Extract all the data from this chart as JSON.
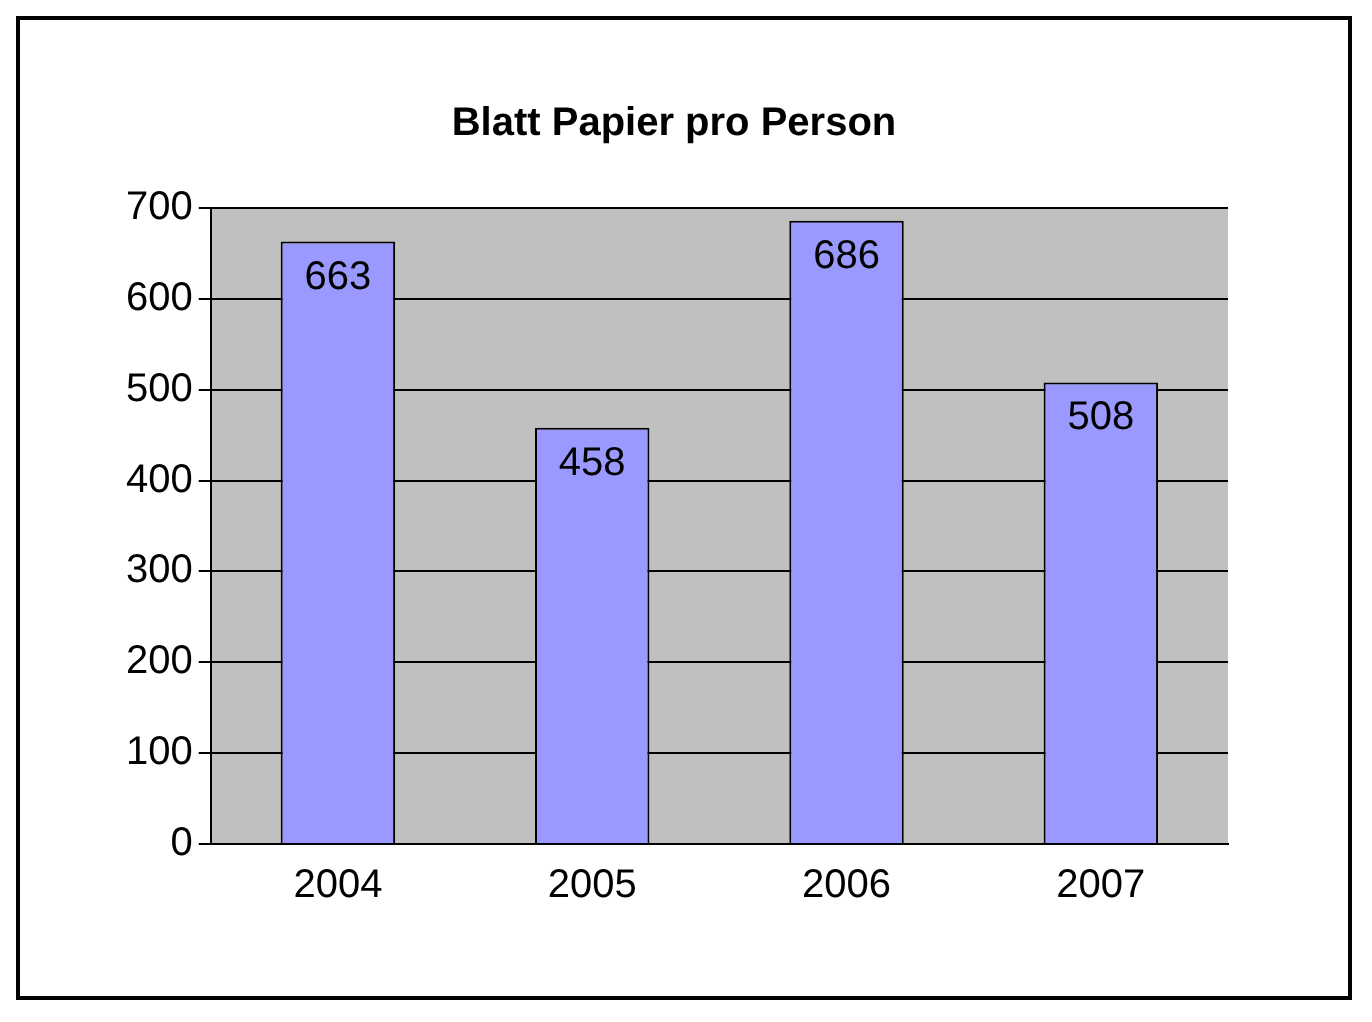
{
  "chart_data": {
    "type": "bar",
    "title": "Blatt Papier pro Person",
    "categories": [
      "2004",
      "2005",
      "2006",
      "2007"
    ],
    "values": [
      663,
      458,
      686,
      508
    ],
    "color": "#9999ff",
    "ylim": [
      0,
      700
    ],
    "yticks": [
      0,
      100,
      200,
      300,
      400,
      500,
      600,
      700
    ],
    "grid": "y",
    "legend": false,
    "data_labels": true
  }
}
